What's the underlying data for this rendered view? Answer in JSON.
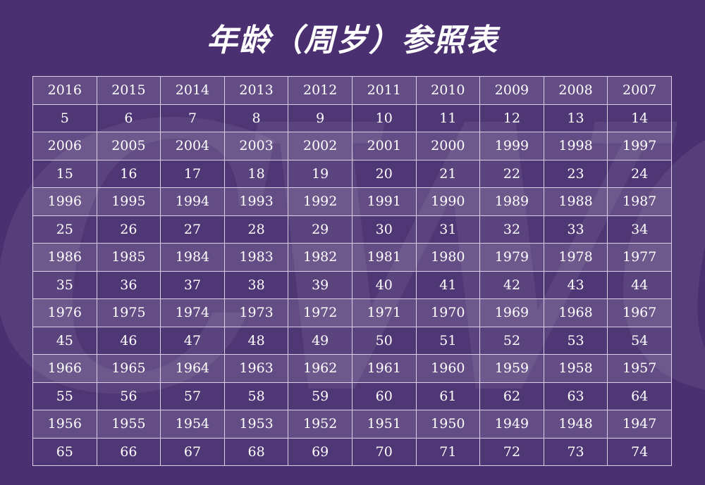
{
  "title": "年龄（周岁）参照表",
  "watermark": "CWQI",
  "rows": [
    [
      "2016",
      "2015",
      "2014",
      "2013",
      "2012",
      "2011",
      "2010",
      "2009",
      "2008",
      "2007"
    ],
    [
      "5",
      "6",
      "7",
      "8",
      "9",
      "10",
      "11",
      "12",
      "13",
      "14"
    ],
    [
      "2006",
      "2005",
      "2004",
      "2003",
      "2002",
      "2001",
      "2000",
      "1999",
      "1998",
      "1997"
    ],
    [
      "15",
      "16",
      "17",
      "18",
      "19",
      "20",
      "21",
      "22",
      "23",
      "24"
    ],
    [
      "1996",
      "1995",
      "1994",
      "1993",
      "1992",
      "1991",
      "1990",
      "1989",
      "1988",
      "1987"
    ],
    [
      "25",
      "26",
      "27",
      "28",
      "29",
      "30",
      "31",
      "32",
      "33",
      "34"
    ],
    [
      "1986",
      "1985",
      "1984",
      "1983",
      "1982",
      "1981",
      "1980",
      "1979",
      "1978",
      "1977"
    ],
    [
      "35",
      "36",
      "37",
      "38",
      "39",
      "40",
      "41",
      "42",
      "43",
      "44"
    ],
    [
      "1976",
      "1975",
      "1974",
      "1973",
      "1972",
      "1971",
      "1970",
      "1969",
      "1968",
      "1967"
    ],
    [
      "45",
      "46",
      "47",
      "48",
      "49",
      "50",
      "51",
      "52",
      "53",
      "54"
    ],
    [
      "1966",
      "1965",
      "1964",
      "1963",
      "1962",
      "1961",
      "1960",
      "1959",
      "1958",
      "1957"
    ],
    [
      "55",
      "56",
      "57",
      "58",
      "59",
      "60",
      "61",
      "62",
      "63",
      "64"
    ],
    [
      "1956",
      "1955",
      "1954",
      "1953",
      "1952",
      "1951",
      "1950",
      "1949",
      "1948",
      "1947"
    ],
    [
      "65",
      "66",
      "67",
      "68",
      "69",
      "70",
      "71",
      "72",
      "73",
      "74"
    ]
  ]
}
